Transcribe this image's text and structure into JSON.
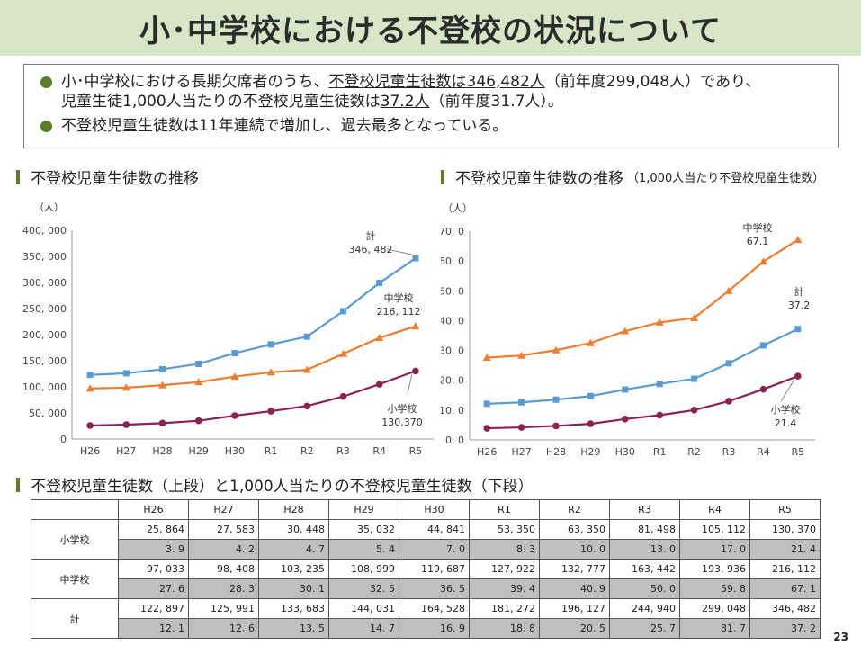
{
  "title": "小･中学校における不登校の状況について",
  "summary": {
    "line1_a": "小･中学校における長期欠席者のうち、",
    "line1_u": "不登校児童生徒数は346,482人",
    "line1_b": "（前年度299,048人）であり、",
    "line2_a": "児童生徒1,000人当たりの不登校児童生徒数は",
    "line2_u": "37.2人",
    "line2_b": "（前年度31.7人）。",
    "line3": "不登校児童生徒数は11年連続で増加し、過去最多となっている。"
  },
  "section1": {
    "title": "不登校児童生徒数の推移"
  },
  "section2": {
    "title": "不登校児童生徒数の推移",
    "subtitle": "（1,000人当たり不登校児童生徒数）"
  },
  "section3": {
    "title": "不登校児童生徒数（上段）と1,000人当たりの不登校児童生徒数（下段）"
  },
  "chart_data": [
    {
      "type": "line",
      "ylabel": "（人）",
      "ylim": [
        0,
        400000
      ],
      "yticks": [
        "0",
        "50, 000",
        "100, 000",
        "150, 000",
        "200, 000",
        "250, 000",
        "300, 000",
        "350, 000",
        "400, 000"
      ],
      "categories": [
        "H26",
        "H27",
        "H28",
        "H29",
        "H30",
        "R1",
        "R2",
        "R3",
        "R4",
        "R5"
      ],
      "series": [
        {
          "name": "計",
          "color": "#5b9bd5",
          "marker": "square",
          "values": [
            122897,
            125991,
            133683,
            144031,
            164528,
            181272,
            196127,
            244940,
            299048,
            346482
          ],
          "label_value": "346, 482"
        },
        {
          "name": "中学校",
          "color": "#ed7d31",
          "marker": "triangle",
          "values": [
            97033,
            98408,
            103235,
            108999,
            119687,
            127922,
            132777,
            163442,
            193936,
            216112
          ],
          "label_value": "216, 112"
        },
        {
          "name": "小学校",
          "color": "#8b2252",
          "marker": "circle",
          "values": [
            25864,
            27583,
            30448,
            35032,
            44841,
            53350,
            63350,
            81498,
            105112,
            130370
          ],
          "label_value": "130,370"
        }
      ]
    },
    {
      "type": "line",
      "ylabel": "（人）",
      "ylim": [
        0,
        70
      ],
      "yticks": [
        "0. 0",
        "10. 0",
        "20. 0",
        "30. 0",
        "40. 0",
        "50. 0",
        "60. 0",
        "70. 0"
      ],
      "categories": [
        "H26",
        "H27",
        "H28",
        "H29",
        "H30",
        "R1",
        "R2",
        "R3",
        "R4",
        "R5"
      ],
      "series": [
        {
          "name": "中学校",
          "color": "#ed7d31",
          "marker": "triangle",
          "values": [
            27.6,
            28.3,
            30.1,
            32.5,
            36.5,
            39.4,
            40.9,
            50.0,
            59.8,
            67.1
          ],
          "label_value": "67.1"
        },
        {
          "name": "計",
          "color": "#5b9bd5",
          "marker": "square",
          "values": [
            12.1,
            12.6,
            13.5,
            14.7,
            16.9,
            18.8,
            20.5,
            25.7,
            31.7,
            37.2
          ],
          "label_value": "37.2"
        },
        {
          "name": "小学校",
          "color": "#8b2252",
          "marker": "circle",
          "values": [
            3.9,
            4.2,
            4.7,
            5.4,
            7.0,
            8.3,
            10.0,
            13.0,
            17.0,
            21.4
          ],
          "label_value": "21.4"
        }
      ]
    }
  ],
  "table": {
    "headers": [
      "H26",
      "H27",
      "H28",
      "H29",
      "H30",
      "R1",
      "R2",
      "R3",
      "R4",
      "R5"
    ],
    "rows": [
      {
        "label": "小学校",
        "counts": [
          "25, 864",
          "27, 583",
          "30, 448",
          "35, 032",
          "44, 841",
          "53, 350",
          "63, 350",
          "81, 498",
          "105, 112",
          "130, 370"
        ],
        "rates": [
          "3. 9",
          "4. 2",
          "4. 7",
          "5. 4",
          "7. 0",
          "8. 3",
          "10. 0",
          "13. 0",
          "17. 0",
          "21. 4"
        ]
      },
      {
        "label": "中学校",
        "counts": [
          "97, 033",
          "98, 408",
          "103, 235",
          "108, 999",
          "119, 687",
          "127, 922",
          "132, 777",
          "163, 442",
          "193, 936",
          "216, 112"
        ],
        "rates": [
          "27. 6",
          "28. 3",
          "30. 1",
          "32. 5",
          "36. 5",
          "39. 4",
          "40. 9",
          "50. 0",
          "59. 8",
          "67. 1"
        ]
      },
      {
        "label": "計",
        "counts": [
          "122, 897",
          "125, 991",
          "133, 683",
          "144, 031",
          "164, 528",
          "181, 272",
          "196, 127",
          "244, 940",
          "299, 048",
          "346, 482"
        ],
        "rates": [
          "12. 1",
          "12. 6",
          "13. 5",
          "14. 7",
          "16. 9",
          "18. 8",
          "20. 5",
          "25. 7",
          "31. 7",
          "37. 2"
        ]
      }
    ]
  },
  "page_number": "23"
}
